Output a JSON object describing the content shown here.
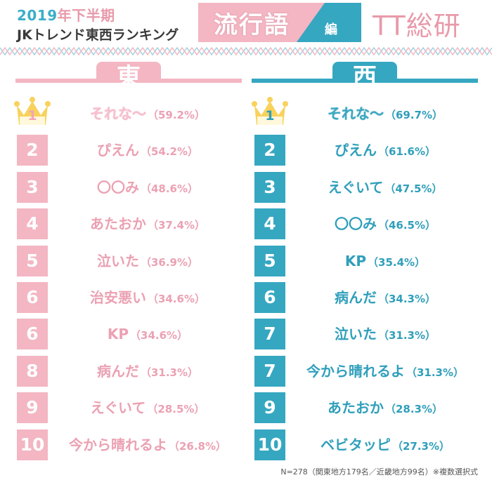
{
  "header": {
    "year_number": "2019",
    "year_rest": "年下半期",
    "subtitle": "JKトレンド東西ランキング",
    "banner_title": "流行語",
    "banner_suffix": "編",
    "logo": "TT総研"
  },
  "east": {
    "heading": "東",
    "items": [
      {
        "rank": "1",
        "word": "それな〜",
        "pct": "（59.2%）"
      },
      {
        "rank": "2",
        "word": "ぴえん",
        "pct": "（54.2%）"
      },
      {
        "rank": "3",
        "word": "〇〇み",
        "pct": "（48.6%）"
      },
      {
        "rank": "4",
        "word": "あたおか",
        "pct": "（37.4%）"
      },
      {
        "rank": "5",
        "word": "泣いた",
        "pct": "（36.9%）"
      },
      {
        "rank": "6",
        "word": "治安悪い",
        "pct": "（34.6%）"
      },
      {
        "rank": "6",
        "word": "KP",
        "pct": "（34.6%）"
      },
      {
        "rank": "8",
        "word": "病んだ",
        "pct": "（31.3%）"
      },
      {
        "rank": "9",
        "word": "えぐいて",
        "pct": "（28.5%）"
      },
      {
        "rank": "10",
        "word": "今から晴れるよ",
        "pct": "（26.8%）"
      }
    ]
  },
  "west": {
    "heading": "西",
    "items": [
      {
        "rank": "1",
        "word": "それな〜",
        "pct": "（69.7%）"
      },
      {
        "rank": "2",
        "word": "ぴえん",
        "pct": "（61.6%）"
      },
      {
        "rank": "3",
        "word": "えぐいて",
        "pct": "（47.5%）"
      },
      {
        "rank": "4",
        "word": "〇〇み",
        "pct": "（46.5%）"
      },
      {
        "rank": "5",
        "word": "KP",
        "pct": "（35.4%）"
      },
      {
        "rank": "6",
        "word": "病んだ",
        "pct": "（34.3%）"
      },
      {
        "rank": "7",
        "word": "泣いた",
        "pct": "（31.3%）"
      },
      {
        "rank": "7",
        "word": "今から晴れるよ",
        "pct": "（31.3%）"
      },
      {
        "rank": "9",
        "word": "あたおか",
        "pct": "（28.3%）"
      },
      {
        "rank": "10",
        "word": "ベビタッピ",
        "pct": "（27.3%）"
      }
    ]
  },
  "footnote": "N=278（関東地方179名／近畿地方99名）※複数選択式",
  "colors": {
    "east_pink": "#f3b6c2",
    "west_blue": "#36a7c1",
    "crown_gold": "#f8d25c"
  },
  "icons": {
    "first_place": "crown-icon"
  }
}
